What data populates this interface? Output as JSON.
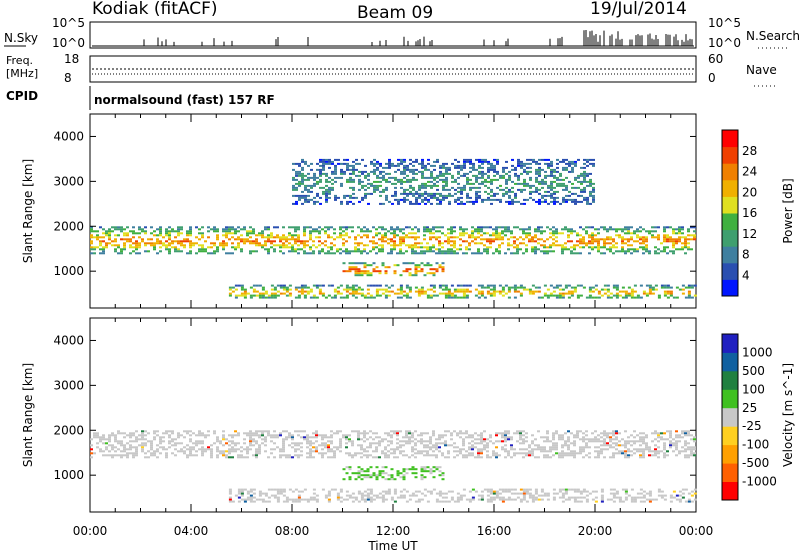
{
  "header": {
    "station": "Kodiak (fitACF)",
    "beam": "Beam 09",
    "date": "19/Jul/2014"
  },
  "top_panels": {
    "nsky_label": "N.Sky",
    "nsky_ticks": [
      "10^5",
      "10^0"
    ],
    "nsearch_label": "N.Search",
    "nsearch_ticks": [
      "10^5",
      "10^0"
    ],
    "freq_label": "Freq.",
    "freq_unit": "[MHz]",
    "freq_ticks": [
      "18",
      "8"
    ],
    "nave_label": "Nave",
    "nave_ticks": [
      "60",
      "0"
    ],
    "cpid_label": "CPID",
    "cpid_value": "normalsound (fast) 157 RF"
  },
  "chart_data": [
    {
      "type": "heatmap",
      "title": "",
      "xlabel": "Time UT",
      "ylabel": "Slant Range [km]",
      "x_ticks": [
        "00:00",
        "04:00",
        "08:00",
        "12:00",
        "16:00",
        "20:00",
        "00:00"
      ],
      "x_range_hours": [
        0,
        24
      ],
      "ylim": [
        180,
        4500
      ],
      "y_ticks": [
        1000,
        2000,
        3000,
        4000
      ],
      "colorbar": {
        "label": "Power [dB]",
        "ticks": [
          "28",
          "24",
          "20",
          "16",
          "12",
          "8",
          "4"
        ],
        "range": [
          0,
          30
        ],
        "colors": [
          "#0016ff",
          "#2a4fb0",
          "#3f7f9f",
          "#3f9f6f",
          "#40b040",
          "#e0e020",
          "#f0b000",
          "#f08000",
          "#f04000",
          "#ff0000"
        ]
      },
      "bands": [
        {
          "name": "main-F-region",
          "start_h": 0,
          "end_h": 24,
          "range_km": [
            1400,
            2000
          ],
          "peak_db": 24
        },
        {
          "name": "near-range-E",
          "start_h": 10,
          "end_h": 14,
          "range_km": [
            900,
            1200
          ],
          "peak_db": 28
        },
        {
          "name": "low-band",
          "start_h": 5.5,
          "end_h": 24,
          "range_km": [
            400,
            700
          ],
          "peak_db": 22
        },
        {
          "name": "upper-scatter",
          "start_h": 8,
          "end_h": 20,
          "range_km": [
            2500,
            3500
          ],
          "peak_db": 10
        }
      ]
    },
    {
      "type": "heatmap",
      "title": "",
      "xlabel": "Time UT",
      "ylabel": "Slant Range [km]",
      "x_ticks": [
        "00:00",
        "04:00",
        "08:00",
        "12:00",
        "16:00",
        "20:00",
        "00:00"
      ],
      "x_range_hours": [
        0,
        24
      ],
      "ylim": [
        180,
        4500
      ],
      "y_ticks": [
        1000,
        2000,
        3000,
        4000
      ],
      "colorbar": {
        "label": "Velocity [m s^-1]",
        "ticks": [
          "1000",
          "500",
          "100",
          "25",
          "-25",
          "-100",
          "-500",
          "-1000"
        ],
        "range": [
          -1000,
          1000
        ],
        "colors": [
          "#ff0000",
          "#ff6000",
          "#ffa000",
          "#ffd020",
          "#c8c8c8",
          "#40c020",
          "#208040",
          "#1060a0",
          "#2020c0"
        ]
      },
      "bands": [
        {
          "name": "main-F-region",
          "start_h": 0,
          "end_h": 24,
          "range_km": [
            1400,
            2000
          ],
          "velocity": 0
        },
        {
          "name": "near-range-E",
          "start_h": 10,
          "end_h": 14,
          "range_km": [
            900,
            1200
          ],
          "velocity": 120
        },
        {
          "name": "low-band",
          "start_h": 5.5,
          "end_h": 24,
          "range_km": [
            400,
            700
          ],
          "velocity": 0
        }
      ]
    }
  ]
}
